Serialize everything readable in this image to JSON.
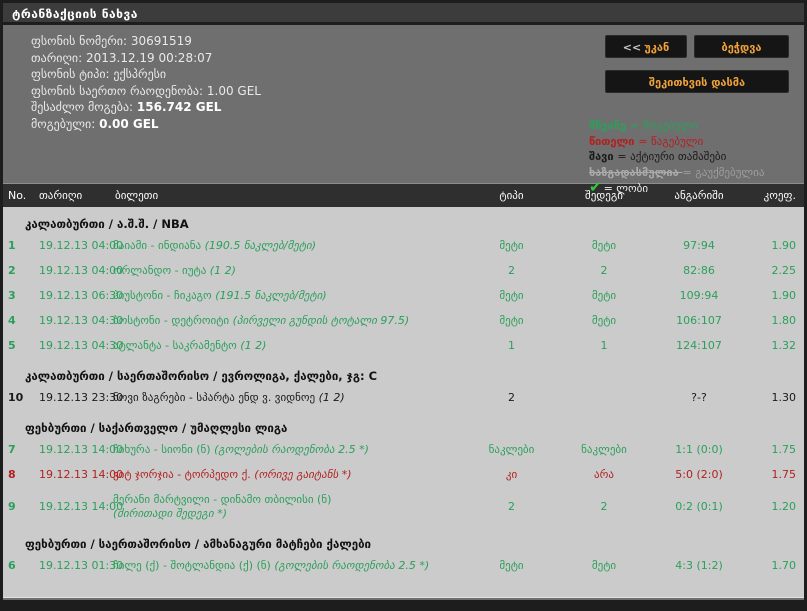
{
  "title": "ტრანზაქციის ნახვა",
  "info_lines": [
    {
      "label": "ფსონის ნომერი:",
      "value": "30691519",
      "bold": false
    },
    {
      "label": "თარიღი:",
      "value": "2013.12.19 00:28:07",
      "bold": false
    },
    {
      "label": "ფსონის ტიპი:",
      "value": "ექსპრესი",
      "bold": false
    },
    {
      "label": "ფსონის საერთო რაოდენობა:",
      "value": "1.00 GEL",
      "bold": false
    },
    {
      "label": "შესაძლო მოგება:",
      "value": "156.742 GEL",
      "bold": true
    },
    {
      "label": "მოგებული:",
      "value": "0.00 GEL",
      "bold": true
    }
  ],
  "buttons": {
    "back_prefix": "<<",
    "back_label": "უკან",
    "print_label": "ბეჭდვა",
    "ask_label": "შეკითხვის დასმა"
  },
  "icons": {
    "check": "✔"
  },
  "legend": [
    {
      "term": "მწვანე",
      "rest": "= მოგებული",
      "style": "won"
    },
    {
      "term": "წითელი",
      "rest": "= წაგებული",
      "style": "lost"
    },
    {
      "term": "შავი",
      "rest": "= აქტიური თამაშები",
      "style": "active"
    },
    {
      "term": "ხაზგადასმულია",
      "rest": "= გაუქმებულია",
      "style": "cancelled"
    },
    {
      "term": "",
      "rest": "= ლობი",
      "style": "check",
      "icon": "check"
    }
  ],
  "table": {
    "headers": [
      "No.",
      "თარიღი",
      "ბილეთი",
      "ტიპი",
      "შედეგი",
      "ანგარიში",
      "კოეფ."
    ],
    "sections": [
      {
        "title": "კალათბურთი / ა.შ.შ. / NBA",
        "rows": [
          {
            "no": "1",
            "date": "19.12.13 04:00",
            "ticket": "მაიამი - ინდიანა",
            "note": "(190.5 ნაკლებ/მეტი)",
            "type": "მეტი",
            "result": "მეტი",
            "score": "97:94",
            "coef": "1.90",
            "status": "won"
          },
          {
            "no": "2",
            "date": "19.12.13 04:00",
            "ticket": "ორლანდო - იუტა",
            "note": "(1 2)",
            "type": "2",
            "result": "2",
            "score": "82:86",
            "coef": "2.25",
            "status": "won"
          },
          {
            "no": "3",
            "date": "19.12.13 06:30",
            "ticket": "ჰიუსტონი - ჩიკაგო",
            "note": "(191.5 ნაკლებ/მეტი)",
            "type": "მეტი",
            "result": "მეტი",
            "score": "109:94",
            "coef": "1.90",
            "status": "won"
          },
          {
            "no": "4",
            "date": "19.12.13 04:30",
            "ticket": "ბოსტონი - დეტროიტი",
            "note": "(პირველი გუნდის ტოტალი 97.5)",
            "type": "მეტი",
            "result": "მეტი",
            "score": "106:107",
            "coef": "1.80",
            "status": "won"
          },
          {
            "no": "5",
            "date": "19.12.13 04:30",
            "ticket": "ატლანტა - საკრამენტო",
            "note": "(1 2)",
            "type": "1",
            "result": "1",
            "score": "124:107",
            "coef": "1.32",
            "status": "won"
          }
        ]
      },
      {
        "title": "კალათბურთი / საერთაშორისო / ევროლიგა, ქალები, ჯგ: C",
        "rows": [
          {
            "no": "10",
            "date": "19.12.13 23:30",
            "ticket": "ნოვი ზაგრები - სპარტა ენდ ვ. ვიდნოე",
            "note": "(1 2)",
            "type": "2",
            "result": "",
            "score": "?-?",
            "coef": "1.30",
            "status": "active"
          }
        ]
      },
      {
        "title": "ფეხბურთი / საქართველო / უმაღლესი ლიგა",
        "rows": [
          {
            "no": "7",
            "date": "19.12.13 14:00",
            "ticket": "ჩიხურა - სიონი (ნ)",
            "note": "(გოლების რაოდენობა 2.5 *)",
            "type": "ნაკლები",
            "result": "ნაკლები",
            "score": "1:1 (0:0)",
            "coef": "1.75",
            "status": "won"
          },
          {
            "no": "8",
            "date": "19.12.13 14:00",
            "ticket": "ვიტ ჯორჯია - ტორპედო ქ.",
            "note": "(ორივე გაიტანს *)",
            "type": "კი",
            "result": "არა",
            "score": "5:0 (2:0)",
            "coef": "1.75",
            "status": "lost"
          },
          {
            "no": "9",
            "date": "19.12.13 14:00",
            "ticket": "მერანი მარტვილი - დინამო თბილისი (ნ)",
            "note": "(ძირითადი შედეგი *)",
            "note_block": true,
            "type": "2",
            "result": "2",
            "score": "0:2 (0:1)",
            "coef": "1.20",
            "status": "won"
          }
        ]
      },
      {
        "title": "ფეხბურთი / საერთაშორისო / ამხანაგური მატჩები ქალები",
        "rows": [
          {
            "no": "6",
            "date": "19.12.13 01:30",
            "ticket": "ჩილე (ქ) - შოტლანდია (ქ) (ნ)",
            "note": "(გოლების რაოდენობა 2.5 *)",
            "type": "მეტი",
            "result": "მეტი",
            "score": "4:3 (1:2)",
            "coef": "1.70",
            "status": "won"
          }
        ]
      }
    ]
  },
  "colors": {
    "won": "#2aa05a",
    "lost": "#b22020",
    "active": "#1a1a1a",
    "cancelled": "#9e9e9e",
    "accent": "#efa23c",
    "check": "#2ecc40",
    "page_bg": "#6f6f6f",
    "table_bg": "#cbcbcb",
    "bar_bg": "#2f2f2f",
    "title_bg": "#3c3c3c"
  }
}
